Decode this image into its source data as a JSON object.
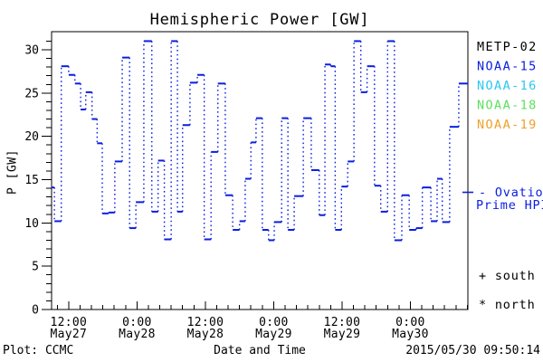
{
  "title": "Hemispheric Power [GW]",
  "footer": {
    "left": "Plot: CCMC",
    "center": "Date and Time",
    "right": "2015/05/30 09:50:14"
  },
  "colors": {
    "background": "#ffffff",
    "axis": "#000000",
    "data_line": "#0a1fe0"
  },
  "legend": {
    "satellites": [
      {
        "label": "METP-02",
        "color": "#000000"
      },
      {
        "label": "NOAA-15",
        "color": "#0a1fe0"
      },
      {
        "label": "NOAA-16",
        "color": "#28c8f0"
      },
      {
        "label": "NOAA-18",
        "color": "#5ce05c"
      },
      {
        "label": "NOAA-19",
        "color": "#f0a028"
      }
    ],
    "ovation": {
      "line1": "- Ovation",
      "line2": "Prime HPI",
      "color": "#0a1fe0"
    },
    "markers": [
      {
        "symbol": "+",
        "label": "south"
      },
      {
        "symbol": "*",
        "label": "north"
      }
    ]
  },
  "chart_data": {
    "type": "line",
    "title": "Hemispheric Power [GW]",
    "xlabel": "Date and Time",
    "ylabel": "P [GW]",
    "x_unit": "hours since 2015-05-27 00:00 UTC",
    "xlim": [
      9.0,
      82.1
    ],
    "ylim": [
      0,
      32.1
    ],
    "yticks": [
      0,
      5,
      10,
      15,
      20,
      25,
      30
    ],
    "y_minor_step": 1,
    "x_minor_step": 2,
    "grid": false,
    "legend_position": "right-outside",
    "xticks": [
      {
        "t": 12,
        "time": "12:00",
        "date": "May27"
      },
      {
        "t": 24,
        "time": "0:00",
        "date": "May28"
      },
      {
        "t": 36,
        "time": "12:00",
        "date": "May28"
      },
      {
        "t": 48,
        "time": "0:00",
        "date": "May29"
      },
      {
        "t": 60,
        "time": "12:00",
        "date": "May29"
      },
      {
        "t": 72,
        "time": "0:00",
        "date": "May30"
      }
    ],
    "series": [
      {
        "name": "Ovation Prime HPI",
        "color": "#0a1fe0",
        "style": "step-horizontal-solid-vertical-dotted",
        "steps_t1_t2_gw": [
          [
            9.0,
            9.5,
            14.1
          ],
          [
            9.5,
            10.7,
            10.2
          ],
          [
            10.7,
            12.0,
            28.1
          ],
          [
            12.0,
            13.1,
            27.1
          ],
          [
            13.1,
            14.1,
            26.1
          ],
          [
            14.1,
            15.0,
            23.1
          ],
          [
            15.0,
            16.1,
            25.1
          ],
          [
            16.1,
            17.0,
            22.0
          ],
          [
            17.0,
            17.9,
            19.2
          ],
          [
            17.9,
            19.0,
            11.1
          ],
          [
            19.0,
            20.1,
            11.2
          ],
          [
            20.1,
            21.4,
            17.1
          ],
          [
            21.4,
            22.7,
            29.1
          ],
          [
            22.7,
            23.8,
            9.4
          ],
          [
            23.8,
            25.2,
            12.4
          ],
          [
            25.2,
            26.6,
            31.0
          ],
          [
            26.6,
            27.7,
            11.3
          ],
          [
            27.7,
            28.8,
            17.2
          ],
          [
            28.8,
            30.0,
            8.1
          ],
          [
            30.0,
            31.1,
            31.0
          ],
          [
            31.1,
            32.0,
            11.3
          ],
          [
            32.0,
            33.3,
            21.3
          ],
          [
            33.3,
            34.6,
            26.2
          ],
          [
            34.6,
            35.8,
            27.1
          ],
          [
            35.8,
            37.0,
            8.1
          ],
          [
            37.0,
            38.2,
            18.2
          ],
          [
            38.2,
            39.5,
            26.1
          ],
          [
            39.5,
            40.8,
            13.2
          ],
          [
            40.8,
            42.0,
            9.2
          ],
          [
            42.0,
            43.0,
            10.2
          ],
          [
            43.0,
            44.0,
            15.1
          ],
          [
            44.0,
            44.9,
            19.3
          ],
          [
            44.9,
            46.0,
            22.1
          ],
          [
            46.0,
            47.1,
            9.2
          ],
          [
            47.1,
            48.1,
            8.0
          ],
          [
            48.1,
            49.4,
            10.1
          ],
          [
            49.4,
            50.5,
            22.1
          ],
          [
            50.5,
            51.6,
            9.2
          ],
          [
            51.6,
            53.2,
            13.1
          ],
          [
            53.2,
            54.6,
            22.1
          ],
          [
            54.6,
            56.0,
            16.1
          ],
          [
            56.0,
            57.0,
            10.9
          ],
          [
            57.0,
            58.0,
            28.3
          ],
          [
            58.0,
            58.8,
            28.1
          ],
          [
            58.8,
            59.9,
            9.2
          ],
          [
            59.9,
            61.0,
            14.2
          ],
          [
            61.0,
            62.1,
            17.1
          ],
          [
            62.1,
            63.3,
            31.0
          ],
          [
            63.3,
            64.4,
            25.1
          ],
          [
            64.4,
            65.7,
            28.1
          ],
          [
            65.7,
            66.8,
            14.3
          ],
          [
            66.8,
            68.0,
            11.3
          ],
          [
            68.0,
            69.2,
            31.0
          ],
          [
            69.2,
            70.5,
            8.0
          ],
          [
            70.5,
            71.8,
            13.2
          ],
          [
            71.8,
            73.0,
            9.2
          ],
          [
            73.0,
            74.1,
            9.4
          ],
          [
            74.1,
            75.6,
            14.1
          ],
          [
            75.6,
            76.7,
            10.2
          ],
          [
            76.7,
            77.6,
            15.1
          ],
          [
            77.6,
            78.9,
            10.1
          ],
          [
            78.9,
            80.5,
            21.1
          ],
          [
            80.5,
            82.1,
            26.1
          ]
        ]
      }
    ]
  }
}
